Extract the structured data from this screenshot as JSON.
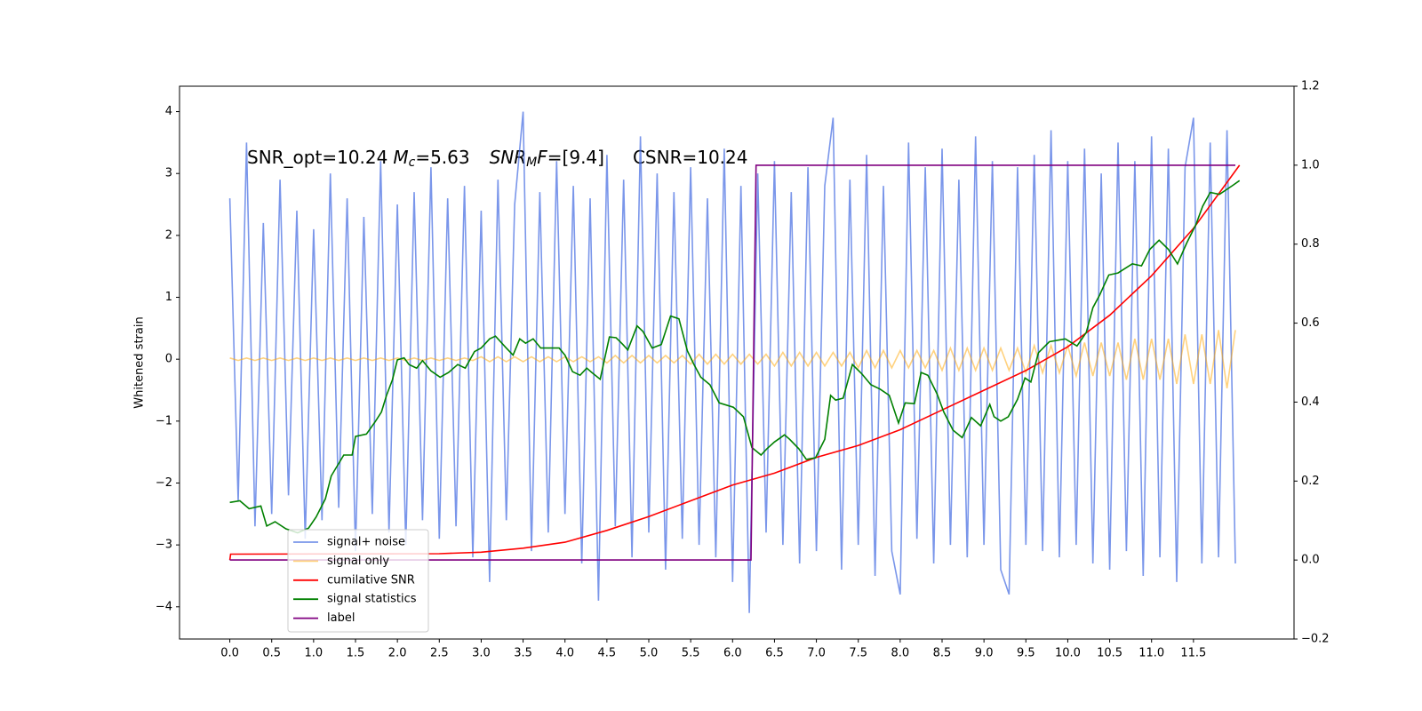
{
  "chart_data": {
    "type": "line",
    "annotation": [
      "SNR_opt=10.24",
      "M",
      "c",
      "=5.63",
      "SNR",
      "M",
      "F",
      "=[9.4]",
      "CSNR=10.24"
    ],
    "ylabel": "Whitened strain",
    "xlim": [
      -0.6,
      12.7
    ],
    "ylim": [
      -4.52,
      4.41
    ],
    "y2lim": [
      -0.2,
      1.2
    ],
    "xticks": [
      {
        "value": 0,
        "label": "0.0"
      },
      {
        "value": 0.5,
        "label": "0.5"
      },
      {
        "value": 1,
        "label": "1.0"
      },
      {
        "value": 1.5,
        "label": "1.5"
      },
      {
        "value": 2,
        "label": "2.0"
      },
      {
        "value": 2.5,
        "label": "2.5"
      },
      {
        "value": 3,
        "label": "3.0"
      },
      {
        "value": 3.5,
        "label": "3.5"
      },
      {
        "value": 4,
        "label": "4.0"
      },
      {
        "value": 4.5,
        "label": "4.5"
      },
      {
        "value": 5,
        "label": "5.0"
      },
      {
        "value": 5.5,
        "label": "5.5"
      },
      {
        "value": 6,
        "label": "6.0"
      },
      {
        "value": 6.5,
        "label": "6.5"
      },
      {
        "value": 7,
        "label": "7.0"
      },
      {
        "value": 7.5,
        "label": "7.5"
      },
      {
        "value": 8,
        "label": "8.0"
      },
      {
        "value": 8.5,
        "label": "8.5"
      },
      {
        "value": 9,
        "label": "9.0"
      },
      {
        "value": 9.5,
        "label": "9.5"
      },
      {
        "value": 10,
        "label": "10.0"
      },
      {
        "value": 10.5,
        "label": "10.5"
      },
      {
        "value": 11,
        "label": "11.0"
      },
      {
        "value": 11.5,
        "label": "11.5"
      }
    ],
    "yticks": [
      {
        "value": -4,
        "label": "−4"
      },
      {
        "value": -3,
        "label": "−3"
      },
      {
        "value": -2,
        "label": "−2"
      },
      {
        "value": -1,
        "label": "−1"
      },
      0,
      1,
      2,
      3,
      4
    ],
    "y2ticks": [
      {
        "value": -0.2,
        "label": "−0.2"
      },
      {
        "value": 0,
        "label": "0.0"
      },
      {
        "value": 0.2,
        "label": "0.2"
      },
      {
        "value": 0.4,
        "label": "0.4"
      },
      {
        "value": 0.6,
        "label": "0.6"
      },
      {
        "value": 0.8,
        "label": "0.8"
      },
      {
        "value": 1,
        "label": "1.0"
      },
      {
        "value": 1.2,
        "label": "1.2"
      }
    ],
    "legend": "lower left",
    "series": [
      {
        "name": "signal+ noise",
        "color": "#4169e1",
        "alpha": 0.7,
        "x": [
          0,
          0.1,
          0.2,
          0.3,
          0.4,
          0.5,
          0.6,
          0.7,
          0.8,
          0.9,
          1,
          1.1,
          1.2,
          1.3,
          1.4,
          1.5,
          1.6,
          1.7,
          1.8,
          1.9,
          2,
          2.1,
          2.2,
          2.3,
          2.4,
          2.5,
          2.6,
          2.7,
          2.8,
          2.9,
          3,
          3.1,
          3.2,
          3.3,
          3.4,
          3.5,
          3.6,
          3.7,
          3.8,
          3.9,
          4,
          4.1,
          4.2,
          4.3,
          4.4,
          4.5,
          4.6,
          4.7,
          4.8,
          4.9,
          5,
          5.1,
          5.2,
          5.3,
          5.4,
          5.5,
          5.6,
          5.7,
          5.8,
          5.9,
          6,
          6.1,
          6.2,
          6.3,
          6.4,
          6.5,
          6.6,
          6.7,
          6.8,
          6.9,
          7,
          7.1,
          7.2,
          7.3,
          7.4,
          7.5,
          7.6,
          7.7,
          7.8,
          7.9,
          8,
          8.1,
          8.2,
          8.3,
          8.4,
          8.5,
          8.6,
          8.7,
          8.8,
          8.9,
          9,
          9.1,
          9.2,
          9.3,
          9.4,
          9.5,
          9.6,
          9.7,
          9.8,
          9.9,
          10,
          10.1,
          10.2,
          10.3,
          10.4,
          10.5,
          10.6,
          10.7,
          10.8,
          10.9,
          11,
          11.1,
          11.2,
          11.3,
          11.4,
          11.5,
          11.6,
          11.7,
          11.8,
          11.9,
          12
        ],
        "values": [
          2.6,
          -2.3,
          3.5,
          -2.7,
          2.2,
          -2.5,
          2.9,
          -2.2,
          2.4,
          -2.9,
          2.1,
          -2.6,
          3.0,
          -2.4,
          2.6,
          -3.1,
          2.3,
          -2.5,
          3.2,
          -2.8,
          2.5,
          -3.0,
          2.7,
          -2.6,
          3.1,
          -2.9,
          2.6,
          -2.7,
          2.8,
          -3.2,
          2.4,
          -3.6,
          2.9,
          -2.6,
          2.5,
          4.0,
          -3.1,
          2.7,
          -2.8,
          3.2,
          -2.5,
          2.8,
          -3.3,
          2.6,
          -3.9,
          3.3,
          -2.7,
          2.9,
          -3.2,
          3.6,
          -2.8,
          3.0,
          -3.4,
          2.7,
          -2.9,
          3.1,
          -3.0,
          2.6,
          -3.2,
          3.4,
          -3.6,
          2.8,
          -4.1,
          3.0,
          -2.8,
          3.2,
          -3.0,
          2.7,
          -3.3,
          3.1,
          -3.1,
          2.8,
          3.9,
          -3.4,
          2.9,
          -3.0,
          3.3,
          -3.5,
          2.8,
          -3.1,
          -3.8,
          3.5,
          -2.9,
          3.1,
          -3.3,
          3.4,
          -3.0,
          2.9,
          -3.2,
          3.6,
          -3.0,
          3.2,
          -3.4,
          -3.8,
          3.1,
          -3.0,
          3.3,
          -3.1,
          3.7,
          -3.2,
          3.2,
          -3.0,
          3.4,
          -3.3,
          3.0,
          -3.4,
          3.5,
          -3.1,
          3.2,
          -3.5,
          3.6,
          -3.2,
          3.4,
          -3.6,
          3.1,
          3.9,
          -3.3,
          3.5,
          -3.2,
          3.7,
          -3.3
        ]
      },
      {
        "name": "signal only",
        "color": "#ffa500",
        "alpha": 0.5,
        "x": [
          0,
          0.1,
          0.2,
          0.3,
          0.4,
          0.5,
          0.6,
          0.7,
          0.8,
          0.9,
          1,
          1.1,
          1.2,
          1.3,
          1.4,
          1.5,
          1.6,
          1.7,
          1.8,
          1.9,
          2,
          2.1,
          2.2,
          2.3,
          2.4,
          2.5,
          2.6,
          2.7,
          2.8,
          2.9,
          3,
          3.1,
          3.2,
          3.3,
          3.4,
          3.5,
          3.6,
          3.7,
          3.8,
          3.9,
          4,
          4.1,
          4.2,
          4.3,
          4.4,
          4.5,
          4.6,
          4.7,
          4.8,
          4.9,
          5,
          5.1,
          5.2,
          5.3,
          5.4,
          5.5,
          5.6,
          5.7,
          5.8,
          5.9,
          6,
          6.1,
          6.2,
          6.3,
          6.4,
          6.5,
          6.6,
          6.7,
          6.8,
          6.9,
          7,
          7.1,
          7.2,
          7.3,
          7.4,
          7.5,
          7.6,
          7.7,
          7.8,
          7.9,
          8,
          8.1,
          8.2,
          8.3,
          8.4,
          8.5,
          8.6,
          8.7,
          8.8,
          8.9,
          9,
          9.1,
          9.2,
          9.3,
          9.4,
          9.5,
          9.6,
          9.7,
          9.8,
          9.9,
          10,
          10.1,
          10.2,
          10.3,
          10.4,
          10.5,
          10.6,
          10.7,
          10.8,
          10.9,
          11,
          11.1,
          11.2,
          11.3,
          11.4,
          11.5,
          11.6,
          11.7,
          11.8,
          11.9,
          12
        ],
        "values": [
          0.02,
          -0.02,
          0.02,
          -0.02,
          0.02,
          -0.02,
          0.02,
          -0.02,
          0.02,
          -0.02,
          0.02,
          -0.02,
          0.02,
          -0.02,
          0.02,
          -0.02,
          0.02,
          -0.02,
          0.02,
          -0.02,
          0.02,
          -0.02,
          0.02,
          -0.02,
          0.02,
          -0.02,
          0.02,
          -0.02,
          0.02,
          -0.02,
          0.04,
          -0.04,
          0.04,
          -0.04,
          0.04,
          -0.04,
          0.04,
          -0.04,
          0.04,
          -0.04,
          0.04,
          -0.04,
          0.04,
          -0.04,
          0.04,
          -0.06,
          0.06,
          -0.06,
          0.06,
          -0.06,
          0.06,
          -0.06,
          0.06,
          -0.06,
          0.06,
          -0.08,
          0.08,
          -0.08,
          0.08,
          -0.08,
          0.08,
          -0.08,
          0.08,
          -0.08,
          0.08,
          -0.11,
          0.11,
          -0.11,
          0.11,
          -0.11,
          0.11,
          -0.11,
          0.11,
          -0.11,
          0.11,
          -0.14,
          0.14,
          -0.14,
          0.14,
          -0.14,
          0.14,
          -0.14,
          0.14,
          -0.14,
          0.14,
          -0.18,
          0.18,
          -0.18,
          0.18,
          -0.18,
          0.18,
          -0.18,
          0.18,
          -0.18,
          0.18,
          -0.22,
          0.22,
          -0.22,
          0.22,
          -0.22,
          0.22,
          -0.27,
          0.27,
          -0.27,
          0.27,
          -0.27,
          0.27,
          -0.33,
          0.33,
          -0.33,
          0.33,
          -0.33,
          0.33,
          -0.4,
          0.4,
          -0.4,
          0.4,
          -0.4,
          0.47,
          -0.47,
          0.47
        ]
      },
      {
        "name": "cumilative SNR",
        "color": "#ff0000",
        "axis": "y2",
        "x": [
          0,
          0.01,
          2.5,
          3,
          3.5,
          4,
          4.5,
          5,
          5.5,
          6,
          6.5,
          7,
          7.5,
          8,
          8.5,
          9,
          9.5,
          10,
          10.5,
          11,
          11.5,
          12.05
        ],
        "values": [
          0,
          0.015,
          0.016,
          0.02,
          0.03,
          0.045,
          0.075,
          0.11,
          0.15,
          0.19,
          0.22,
          0.26,
          0.29,
          0.33,
          0.38,
          0.43,
          0.48,
          0.54,
          0.62,
          0.72,
          0.84,
          1.0
        ]
      },
      {
        "name": "signal statistics",
        "color": "#008000",
        "axis": "y2",
        "x": [
          0,
          0.12,
          0.23,
          0.37,
          0.44,
          0.54,
          0.67,
          0.81,
          0.94,
          1.03,
          1.14,
          1.21,
          1.36,
          1.46,
          1.5,
          1.63,
          1.74,
          1.81,
          1.87,
          1.94,
          2,
          2.08,
          2.14,
          2.23,
          2.3,
          2.4,
          2.51,
          2.61,
          2.72,
          2.81,
          2.92,
          3,
          3.1,
          3.17,
          3.29,
          3.38,
          3.46,
          3.53,
          3.62,
          3.71,
          3.82,
          3.93,
          4,
          4.09,
          4.18,
          4.26,
          4.32,
          4.42,
          4.53,
          4.61,
          4.69,
          4.75,
          4.86,
          4.93,
          5.04,
          5.15,
          5.26,
          5.36,
          5.46,
          5.54,
          5.62,
          5.73,
          5.84,
          6.01,
          6.13,
          6.23,
          6.34,
          6.41,
          6.5,
          6.62,
          6.68,
          6.79,
          6.88,
          6.99,
          7.1,
          7.17,
          7.23,
          7.32,
          7.43,
          7.54,
          7.65,
          7.76,
          7.87,
          7.98,
          8.06,
          8.17,
          8.25,
          8.33,
          8.44,
          8.52,
          8.63,
          8.74,
          8.85,
          8.96,
          9.07,
          9.12,
          9.2,
          9.29,
          9.4,
          9.49,
          9.56,
          9.65,
          9.78,
          9.97,
          10.11,
          10.22,
          10.3,
          10.38,
          10.49,
          10.6,
          10.77,
          10.88,
          10.98,
          11.09,
          11.2,
          11.31,
          11.42,
          11.53,
          11.61,
          11.7,
          11.81,
          11.97,
          12.05
        ],
        "values": [
          0.146,
          0.15,
          0.13,
          0.137,
          0.086,
          0.097,
          0.079,
          0.069,
          0.081,
          0.109,
          0.155,
          0.213,
          0.266,
          0.266,
          0.313,
          0.319,
          0.352,
          0.375,
          0.417,
          0.456,
          0.507,
          0.512,
          0.495,
          0.486,
          0.505,
          0.479,
          0.463,
          0.475,
          0.495,
          0.486,
          0.528,
          0.537,
          0.56,
          0.567,
          0.539,
          0.519,
          0.56,
          0.549,
          0.56,
          0.537,
          0.537,
          0.537,
          0.519,
          0.477,
          0.468,
          0.486,
          0.475,
          0.458,
          0.565,
          0.563,
          0.546,
          0.532,
          0.593,
          0.579,
          0.537,
          0.546,
          0.618,
          0.611,
          0.53,
          0.495,
          0.463,
          0.444,
          0.398,
          0.387,
          0.363,
          0.285,
          0.266,
          0.282,
          0.299,
          0.317,
          0.306,
          0.282,
          0.255,
          0.259,
          0.306,
          0.417,
          0.405,
          0.41,
          0.495,
          0.472,
          0.444,
          0.433,
          0.417,
          0.347,
          0.398,
          0.396,
          0.475,
          0.468,
          0.421,
          0.375,
          0.329,
          0.31,
          0.361,
          0.34,
          0.394,
          0.363,
          0.352,
          0.363,
          0.407,
          0.461,
          0.451,
          0.525,
          0.553,
          0.56,
          0.542,
          0.576,
          0.639,
          0.671,
          0.722,
          0.727,
          0.75,
          0.745,
          0.787,
          0.81,
          0.787,
          0.75,
          0.803,
          0.85,
          0.896,
          0.931,
          0.926,
          0.949,
          0.961
        ]
      },
      {
        "name": "label",
        "color": "#800080",
        "axis": "y2",
        "x": [
          0,
          6.22,
          6.28,
          12.0
        ],
        "values": [
          0,
          0,
          1,
          1
        ]
      }
    ]
  }
}
